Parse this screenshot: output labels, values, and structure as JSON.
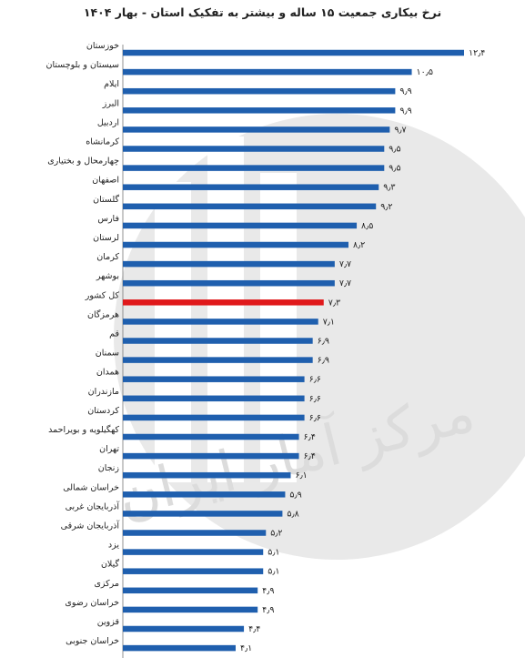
{
  "title": "نرخ بیکاری جمعیت ۱۵ ساله و بیشتر به تفکیک استان - بهار ۱۴۰۴",
  "colors": {
    "bar": "#1f5fae",
    "highlight": "#e0191b"
  },
  "watermark_text": "مرکز آمار ایران",
  "chart_data": {
    "type": "bar",
    "orientation": "horizontal",
    "title": "نرخ بیکاری جمعیت ۱۵ ساله و بیشتر به تفکیک استان - بهار ۱۴۰۴",
    "categories": [
      "خوزستان",
      "سیستان و بلوچستان",
      "ایلام",
      "البرز",
      "اردبیل",
      "کرمانشاه",
      "چهارمحال و بختیاری",
      "اصفهان",
      "گلستان",
      "فارس",
      "لرستان",
      "کرمان",
      "بوشهر",
      "کل کشور",
      "هرمزگان",
      "قم",
      "سمنان",
      "همدان",
      "مازندران",
      "کردستان",
      "کهگیلویه و بویراحمد",
      "تهران",
      "زنجان",
      "خراسان شمالی",
      "آذربایجان غربی",
      "آذربایجان شرقی",
      "یزد",
      "گیلان",
      "مرکزی",
      "خراسان رضوی",
      "قزوین",
      "خراسان جنوبی"
    ],
    "values": [
      12.4,
      10.5,
      9.9,
      9.9,
      9.7,
      9.5,
      9.5,
      9.3,
      9.2,
      8.5,
      8.2,
      7.7,
      7.7,
      7.3,
      7.1,
      6.9,
      6.9,
      6.6,
      6.6,
      6.6,
      6.4,
      6.4,
      6.1,
      5.9,
      5.8,
      5.2,
      5.1,
      5.1,
      4.9,
      4.9,
      4.4,
      4.1
    ],
    "value_labels": [
      "۱۲٫۴",
      "۱۰٫۵",
      "۹٫۹",
      "۹٫۹",
      "۹٫۷",
      "۹٫۵",
      "۹٫۵",
      "۹٫۳",
      "۹٫۲",
      "۸٫۵",
      "۸٫۲",
      "۷٫۷",
      "۷٫۷",
      "۷٫۳",
      "۷٫۱",
      "۶٫۹",
      "۶٫۹",
      "۶٫۶",
      "۶٫۶",
      "۶٫۶",
      "۶٫۴",
      "۶٫۴",
      "۶٫۱",
      "۵٫۹",
      "۵٫۸",
      "۵٫۲",
      "۵٫۱",
      "۵٫۱",
      "۴٫۹",
      "۴٫۹",
      "۴٫۴",
      "۴٫۱"
    ],
    "highlight_category": "کل کشور",
    "xlim": [
      0,
      12.4
    ],
    "grid": false,
    "legend": "none"
  }
}
